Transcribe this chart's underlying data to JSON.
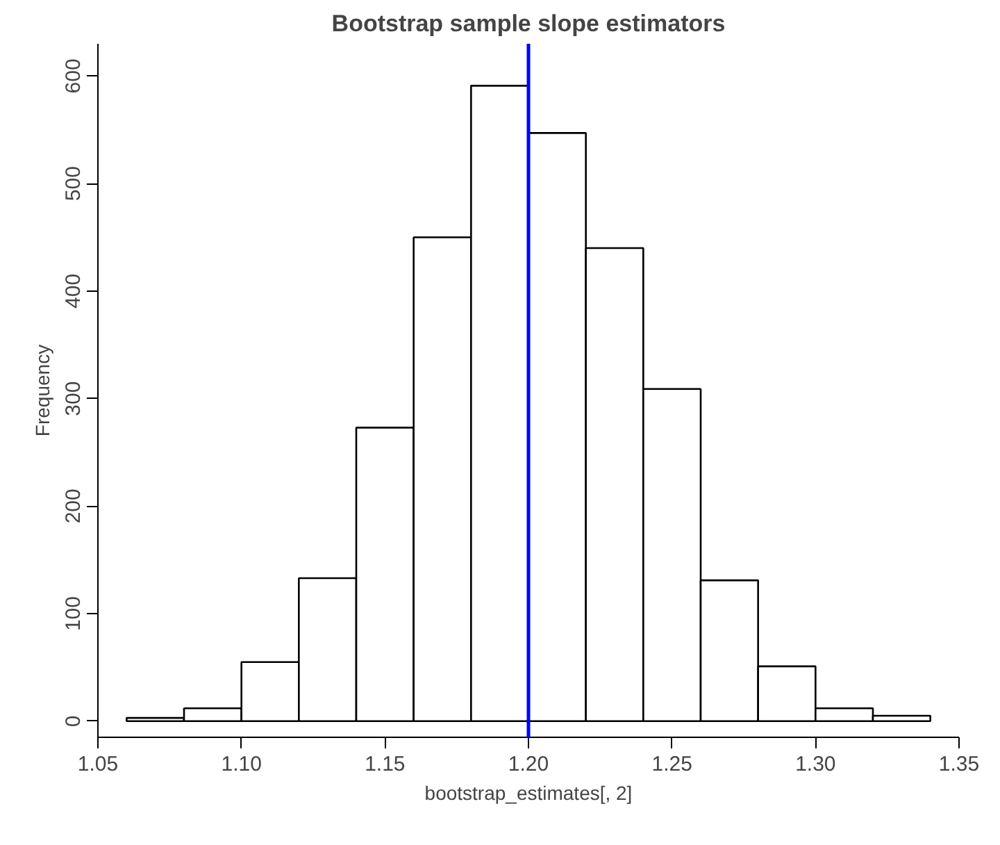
{
  "chart_data": {
    "type": "histogram",
    "title": "Bootstrap sample slope estimators",
    "xlabel": "bootstrap_estimates[, 2]",
    "ylabel": "Frequency",
    "bins": [
      1.06,
      1.08,
      1.1,
      1.12,
      1.14,
      1.16,
      1.18,
      1.2,
      1.22,
      1.24,
      1.26,
      1.28,
      1.3,
      1.32,
      1.34
    ],
    "values": [
      3,
      12,
      55,
      133,
      273,
      450,
      591,
      547,
      440,
      309,
      131,
      51,
      12,
      5
    ],
    "color": "#ffffff",
    "xlim": [
      1.05,
      1.35
    ],
    "ylim": [
      -15,
      630
    ],
    "xticks": [
      {
        "value": 1.05,
        "label": "1.05"
      },
      {
        "value": 1.1,
        "label": "1.10"
      },
      {
        "value": 1.15,
        "label": "1.15"
      },
      {
        "value": 1.2,
        "label": "1.20"
      },
      {
        "value": 1.25,
        "label": "1.25"
      },
      {
        "value": 1.3,
        "label": "1.30"
      },
      {
        "value": 1.35,
        "label": "1.35"
      }
    ],
    "yticks": [
      0,
      100,
      200,
      300,
      400,
      500,
      600
    ],
    "ref_lines": [
      {
        "axis": "x",
        "value": 1.2,
        "color": "#0000ff"
      }
    ],
    "grid": false
  }
}
